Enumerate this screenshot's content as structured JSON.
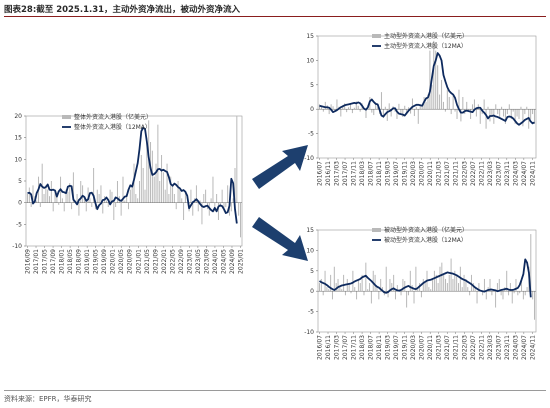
{
  "figure": {
    "label": "图表28:",
    "title": "截至 2025.1.31，主动外资净流出，被动外资净流入",
    "source": "资料来源：EPFR，华泰研究"
  },
  "colors": {
    "bar": "#b9b9b9",
    "line": "#0e2a5e",
    "arrow": "#1d3f6e",
    "title_rule": "#8a1e1e"
  },
  "chart_data": [
    {
      "id": "total",
      "type": "bar",
      "legend_position": "top-left",
      "series": [
        {
          "name": "整体外资流入港股（亿美元）",
          "type": "bar",
          "color": "#b9b9b9"
        },
        {
          "name": "整体外资流入港股（12MA）",
          "type": "line",
          "color": "#0e2a5e"
        }
      ],
      "ylim": [
        -10,
        20
      ],
      "yticks": [
        -10,
        -5,
        0,
        5,
        10,
        15,
        20
      ],
      "x_start": "2016-09",
      "x_end": "2025-01",
      "xticks": [
        "2016/09",
        "2017/01",
        "2017/05",
        "2017/09",
        "2018/01",
        "2018/05",
        "2018/09",
        "2019/01",
        "2019/05",
        "2019/09",
        "2020/01",
        "2020/05",
        "2020/09",
        "2021/01",
        "2021/05",
        "2021/09",
        "2022/01",
        "2022/05",
        "2022/09",
        "2023/01",
        "2023/05",
        "2023/09",
        "2024/01",
        "2024/05",
        "2024/09",
        "2025/01"
      ],
      "bar_values": [
        2,
        3.5,
        -1,
        4,
        1.5,
        0.5,
        6,
        -1,
        9,
        2,
        4,
        3,
        1.5,
        5,
        -2,
        3,
        2,
        -0.5,
        6,
        1,
        -2,
        3,
        2.5,
        4.5,
        -1.5,
        7,
        0.5,
        2,
        -3,
        5,
        4,
        1,
        -2,
        3.5,
        1,
        -1,
        8,
        -1.5,
        3,
        2,
        4,
        -2.5,
        1.5,
        0.5,
        -1,
        3,
        2.5,
        -4,
        -1,
        5,
        1.5,
        -3,
        6,
        0.5,
        2,
        -1.5,
        3,
        4,
        9,
        2,
        1,
        5,
        11,
        8,
        3,
        15,
        19,
        14,
        12,
        6,
        9,
        18,
        5,
        11,
        7,
        3,
        9,
        2,
        6,
        4,
        2,
        -1.5,
        5,
        3,
        1,
        -4,
        2.5,
        0,
        -2,
        3,
        -3,
        1,
        4,
        -2,
        0.5,
        -5,
        2,
        3,
        -1.5,
        -3,
        1,
        6,
        -2,
        2,
        -4,
        -1,
        3,
        -2,
        -1,
        4,
        -3,
        -2,
        1,
        8,
        20,
        -3,
        -8
      ],
      "ma_values": [
        2.2,
        2.3,
        1.9,
        -0.2,
        0.3,
        2.2,
        3.1,
        4.3,
        3.7,
        3.4,
        3.6,
        4.2,
        3.0,
        2.9,
        3.0,
        2.8,
        1.4,
        2.6,
        3.1,
        2.5,
        2.4,
        2.2,
        3.7,
        3.9,
        3.8,
        0.7,
        0.2,
        -0.4,
        0.6,
        1.0,
        1.6,
        1.3,
        0.4,
        0.8,
        2.2,
        2.3,
        1.6,
        -0.1,
        -1.5,
        -0.6,
        -0.2,
        0.6,
        0.7,
        1.2,
        0.6,
        -0.4,
        0.3,
        0.4,
        1.2,
        1.0,
        0.6,
        0.4,
        0.9,
        1.4,
        1.5,
        3.0,
        4.0,
        3.7,
        5.3,
        7.2,
        9.1,
        12.4,
        16.5,
        17.3,
        17.0,
        14.1,
        10.5,
        8.0,
        6.4,
        6.6,
        7.0,
        7.7,
        7.8,
        7.4,
        7.6,
        7.3,
        7.1,
        5.9,
        4.3,
        3.9,
        4.4,
        4.1,
        3.6,
        3.3,
        2.7,
        2.9,
        2.5,
        1.6,
        -1.3,
        -0.6,
        0.1,
        0.4,
        0.8,
        0.3,
        -0.3,
        -0.8,
        -1.0,
        -0.8,
        -0.7,
        -1.2,
        -1.7,
        -2.0,
        -1.2,
        -2.0,
        -0.9,
        -0.6,
        -0.8,
        -1.5,
        -2.4,
        -2.2,
        -0.7,
        5.5,
        4.5,
        -1.5,
        -4.8
      ]
    },
    {
      "id": "active",
      "type": "bar",
      "legend_position": "top-left",
      "series": [
        {
          "name": "主动型外资流入港股（亿美元）",
          "type": "bar",
          "color": "#b9b9b9"
        },
        {
          "name": "主动型外资流入港股（12MA）",
          "type": "line",
          "color": "#0e2a5e"
        }
      ],
      "ylim": [
        -10,
        15
      ],
      "yticks": [
        -10,
        -5,
        0,
        5,
        10,
        15
      ],
      "x_start": "2016-07",
      "x_end": "2024-12",
      "xticks": [
        "2016/07",
        "2016/11",
        "2017/03",
        "2017/07",
        "2017/11",
        "2018/03",
        "2018/07",
        "2018/11",
        "2019/03",
        "2019/07",
        "2019/11",
        "2020/03",
        "2020/07",
        "2020/11",
        "2021/03",
        "2021/07",
        "2021/11",
        "2022/03",
        "2022/07",
        "2022/11",
        "2023/03",
        "2023/07",
        "2023/11",
        "2024/03",
        "2024/07",
        "2024/11"
      ],
      "bar_values": [
        1,
        0.5,
        -0.5,
        1.5,
        0.8,
        -1,
        1,
        0.6,
        -0.4,
        2,
        0.5,
        -1.5,
        0.8,
        1.2,
        -0.6,
        0.4,
        1,
        -0.8,
        0.3,
        1.6,
        0.7,
        -0.5,
        1.2,
        0.2,
        -1.8,
        0.9,
        2.5,
        -0.7,
        -1.2,
        1.4,
        0.4,
        -1,
        3.5,
        -1.8,
        0.5,
        -2.4,
        1.2,
        -1.5,
        0.6,
        -0.5,
        -2,
        1.1,
        -0.8,
        -1.6,
        0.7,
        -1.1,
        0.4,
        -0.9,
        2.2,
        -1.4,
        0.5,
        -3,
        1,
        0.8,
        2.5,
        1.5,
        3,
        12,
        5,
        14,
        12,
        9,
        3,
        6,
        1.5,
        -0.5,
        4,
        2.5,
        -1,
        3,
        -0.5,
        -2,
        4,
        -2.5,
        2.5,
        -1,
        1.5,
        -0.5,
        -2,
        1,
        2,
        -1.5,
        1,
        -3,
        -1,
        2,
        -4,
        0.5,
        -2.5,
        -1.5,
        -3,
        1,
        -1,
        -2,
        0.5,
        -1.5,
        -3,
        -1,
        1,
        -2,
        -0.5,
        -3,
        -1.5,
        -2,
        0.5,
        -3.5,
        -1,
        0.5,
        -4,
        -2,
        -1,
        -3
      ],
      "ma_values": [
        0.7,
        0.6,
        0.5,
        0.4,
        0.4,
        0.3,
        -0.1,
        -0.6,
        -0.4,
        -0.2,
        0.1,
        0.4,
        0.6,
        0.8,
        0.9,
        1.0,
        1.1,
        1.2,
        1.3,
        1.2,
        1.4,
        1.2,
        0.7,
        0.1,
        -0.1,
        0.4,
        1.6,
        2.0,
        1.5,
        1.1,
        1.0,
        -0.1,
        -1.3,
        -1.5,
        -1.0,
        -0.6,
        -0.4,
        -0.2,
        0.2,
        0.2,
        -0.5,
        -0.9,
        -1.0,
        -1.1,
        -1.3,
        -0.8,
        -0.3,
        0.1,
        0.5,
        0.7,
        0.9,
        0.9,
        0.8,
        0.7,
        1.5,
        2.2,
        2.4,
        3.6,
        6.3,
        8.9,
        10.0,
        11.5,
        11.0,
        10.0,
        7.0,
        5.7,
        4.5,
        3.7,
        3.3,
        3.0,
        2.3,
        0.9,
        0.0,
        -0.7,
        -0.7,
        -0.4,
        -0.3,
        -0.4,
        -0.5,
        -0.6,
        -0.1,
        0.2,
        0.3,
        0.3,
        -0.3,
        -0.7,
        -1.2,
        -1.9,
        -1.4,
        -1.4,
        -1.3,
        -1.5,
        -1.6,
        -1.8,
        -2.0,
        -2.2,
        -2.4,
        -1.6,
        -1.5,
        -1.6,
        -1.9,
        -2.4,
        -2.9,
        -3.2,
        -2.9,
        -2.6,
        -2.2,
        -2.0,
        -1.8,
        -2.5,
        -2.9,
        -2.7
      ]
    },
    {
      "id": "passive",
      "type": "bar",
      "legend_position": "top-left",
      "series": [
        {
          "name": "被动型外资流入港股（亿美元）",
          "type": "bar",
          "color": "#b9b9b9"
        },
        {
          "name": "被动型外资流入港股（12MA）",
          "type": "line",
          "color": "#0e2a5e"
        }
      ],
      "ylim": [
        -10,
        15
      ],
      "yticks": [
        -10,
        -5,
        0,
        5,
        10,
        15
      ],
      "x_start": "2016-07",
      "x_end": "2024-12",
      "xticks": [
        "2016/07",
        "2016/11",
        "2017/03",
        "2017/07",
        "2017/11",
        "2018/03",
        "2018/07",
        "2018/11",
        "2019/03",
        "2019/07",
        "2019/11",
        "2020/03",
        "2020/07",
        "2020/11",
        "2021/03",
        "2021/07",
        "2021/11",
        "2022/03",
        "2022/07",
        "2022/11",
        "2023/03",
        "2023/07",
        "2023/11",
        "2024/03",
        "2024/07",
        "2024/11"
      ],
      "bar_values": [
        2,
        3,
        -1,
        5,
        1,
        0.5,
        4,
        -2,
        6,
        2,
        3,
        1,
        0.5,
        4,
        -1,
        3,
        2,
        -0.5,
        5,
        1,
        -2,
        3,
        2,
        4,
        -1,
        7,
        0.5,
        2,
        -3,
        5,
        4,
        1,
        -2,
        3,
        1,
        -1,
        6,
        -1.5,
        3,
        2,
        4,
        -2,
        1.5,
        0.5,
        -1,
        3,
        2.5,
        -4,
        -1,
        5,
        1.5,
        -3,
        6,
        0.5,
        2,
        -1.5,
        3,
        2,
        5,
        1,
        0.5,
        3,
        5,
        4,
        2,
        6,
        7,
        4,
        3,
        2,
        4,
        8,
        3,
        5,
        4,
        2,
        6,
        1,
        4,
        3,
        1,
        -1,
        4,
        2,
        1,
        -3,
        2,
        0,
        -1,
        3,
        -2,
        1,
        3,
        -1,
        0.5,
        -4,
        2,
        3,
        -1,
        -2,
        1,
        5,
        -1,
        2,
        -3,
        -0.5,
        3,
        -1,
        -0.5,
        3,
        -2,
        -1,
        1,
        6,
        14,
        -2,
        -7
      ],
      "ma_values": [
        2.5,
        2.2,
        2.0,
        1.8,
        1.5,
        1.1,
        0.8,
        0.5,
        0.3,
        0.6,
        1.0,
        1.2,
        1.4,
        1.5,
        1.6,
        1.7,
        1.8,
        1.9,
        2.1,
        2.4,
        2.6,
        2.8,
        3.0,
        3.4,
        3.6,
        3.8,
        3.3,
        2.9,
        2.5,
        2.0,
        1.5,
        1.1,
        0.9,
        0.5,
        0.1,
        -0.3,
        -0.4,
        -0.2,
        0.2,
        0.5,
        0.7,
        0.4,
        0.2,
        0.1,
        0.3,
        0.6,
        0.9,
        1.1,
        1.3,
        1.0,
        0.8,
        0.6,
        0.5,
        0.8,
        1.2,
        1.6,
        2.0,
        2.3,
        2.6,
        2.7,
        2.8,
        3.0,
        3.2,
        3.4,
        3.6,
        3.8,
        4.0,
        4.2,
        4.4,
        4.6,
        4.5,
        4.4,
        4.3,
        4.1,
        3.9,
        3.6,
        3.3,
        3.0,
        2.8,
        2.6,
        2.3,
        2.0,
        1.7,
        1.3,
        0.9,
        0.6,
        0.3,
        0.1,
        0.0,
        -0.1,
        0.1,
        0.3,
        0.4,
        0.4,
        0.3,
        0.2,
        0.0,
        0.1,
        0.3,
        0.4,
        0.5,
        0.6,
        0.4,
        0.3,
        0.3,
        0.4,
        0.6,
        0.8,
        1.5,
        2.8,
        4.2,
        7.8,
        7.0,
        4.5,
        -1.5
      ]
    }
  ]
}
